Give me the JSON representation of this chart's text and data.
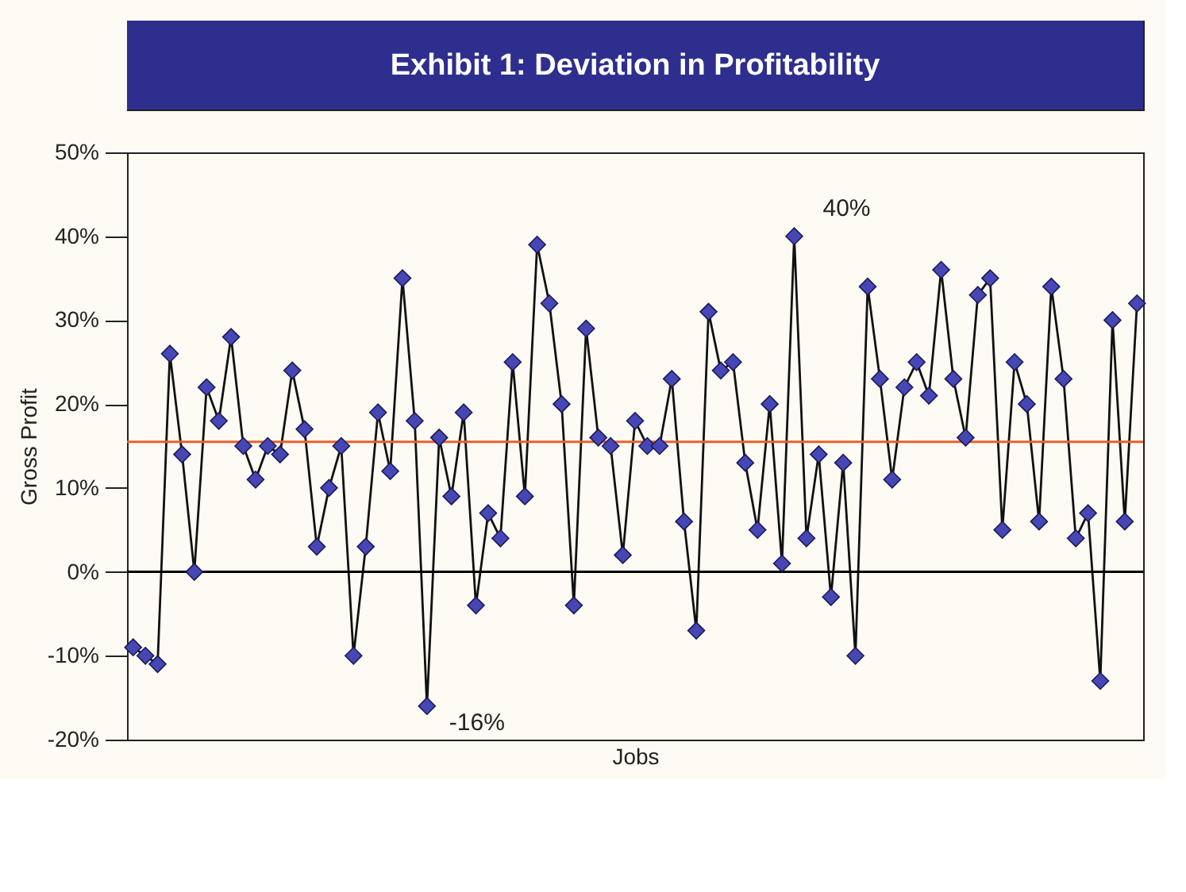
{
  "chart_data": {
    "type": "line",
    "title": "Exhibit 1: Deviation in Profitability",
    "xlabel": "Jobs",
    "ylabel": "Gross Profit",
    "categories": [
      null,
      null,
      null,
      null,
      null,
      null,
      null,
      null,
      null,
      null,
      null,
      null,
      null,
      null,
      null,
      null,
      null,
      null,
      null,
      null,
      null,
      null,
      null,
      null,
      null,
      null,
      null,
      null,
      null,
      null,
      null,
      null,
      null,
      null,
      null,
      null,
      null,
      null,
      null,
      null,
      null,
      null,
      null,
      null,
      null,
      null,
      null,
      null,
      null,
      null,
      null,
      null,
      null,
      null,
      null,
      null,
      null,
      null,
      null,
      null,
      null,
      null,
      null,
      null,
      null,
      null,
      null,
      null,
      null,
      null,
      null,
      null,
      null,
      null,
      null,
      null,
      null,
      null,
      null,
      null,
      null,
      null,
      null
    ],
    "series": [
      {
        "color": "#4646b4",
        "values": [
          -9,
          -10,
          -11,
          26,
          14,
          0,
          22,
          18,
          28,
          15,
          11,
          15,
          14,
          24,
          17,
          3,
          10,
          15,
          -10,
          3,
          19,
          12,
          35,
          18,
          -16,
          16,
          9,
          19,
          -4,
          7,
          4,
          25,
          9,
          39,
          32,
          20,
          -4,
          29,
          16,
          15,
          2,
          18,
          15,
          15,
          23,
          6,
          -7,
          31,
          24,
          25,
          13,
          5,
          20,
          1,
          40,
          4,
          14,
          -3,
          13,
          -10,
          34,
          23,
          11,
          22,
          25,
          21,
          36,
          23,
          16,
          33,
          35,
          5,
          25,
          20,
          6,
          34,
          23,
          4,
          7,
          -13,
          30,
          6,
          32
        ]
      }
    ],
    "ylim": [
      -20,
      50
    ],
    "yticks": [
      {
        "value": -20,
        "label": "-20%"
      },
      {
        "value": -10,
        "label": "-10%"
      },
      {
        "value": 0,
        "label": "0%"
      },
      {
        "value": 10,
        "label": "10%"
      },
      {
        "value": 20,
        "label": "20%"
      },
      {
        "value": 30,
        "label": "30%"
      },
      {
        "value": 40,
        "label": "40%"
      },
      {
        "value": 50,
        "label": "50%"
      }
    ],
    "marker": "diamond",
    "line_style": "solid",
    "grid": false,
    "ref_lines": [
      {
        "axis": "y",
        "value": 15.5,
        "color": "#e8602c"
      },
      {
        "axis": "y",
        "value": 0,
        "color": "#000000"
      }
    ],
    "annotations": [
      "40%",
      "-16%"
    ]
  }
}
